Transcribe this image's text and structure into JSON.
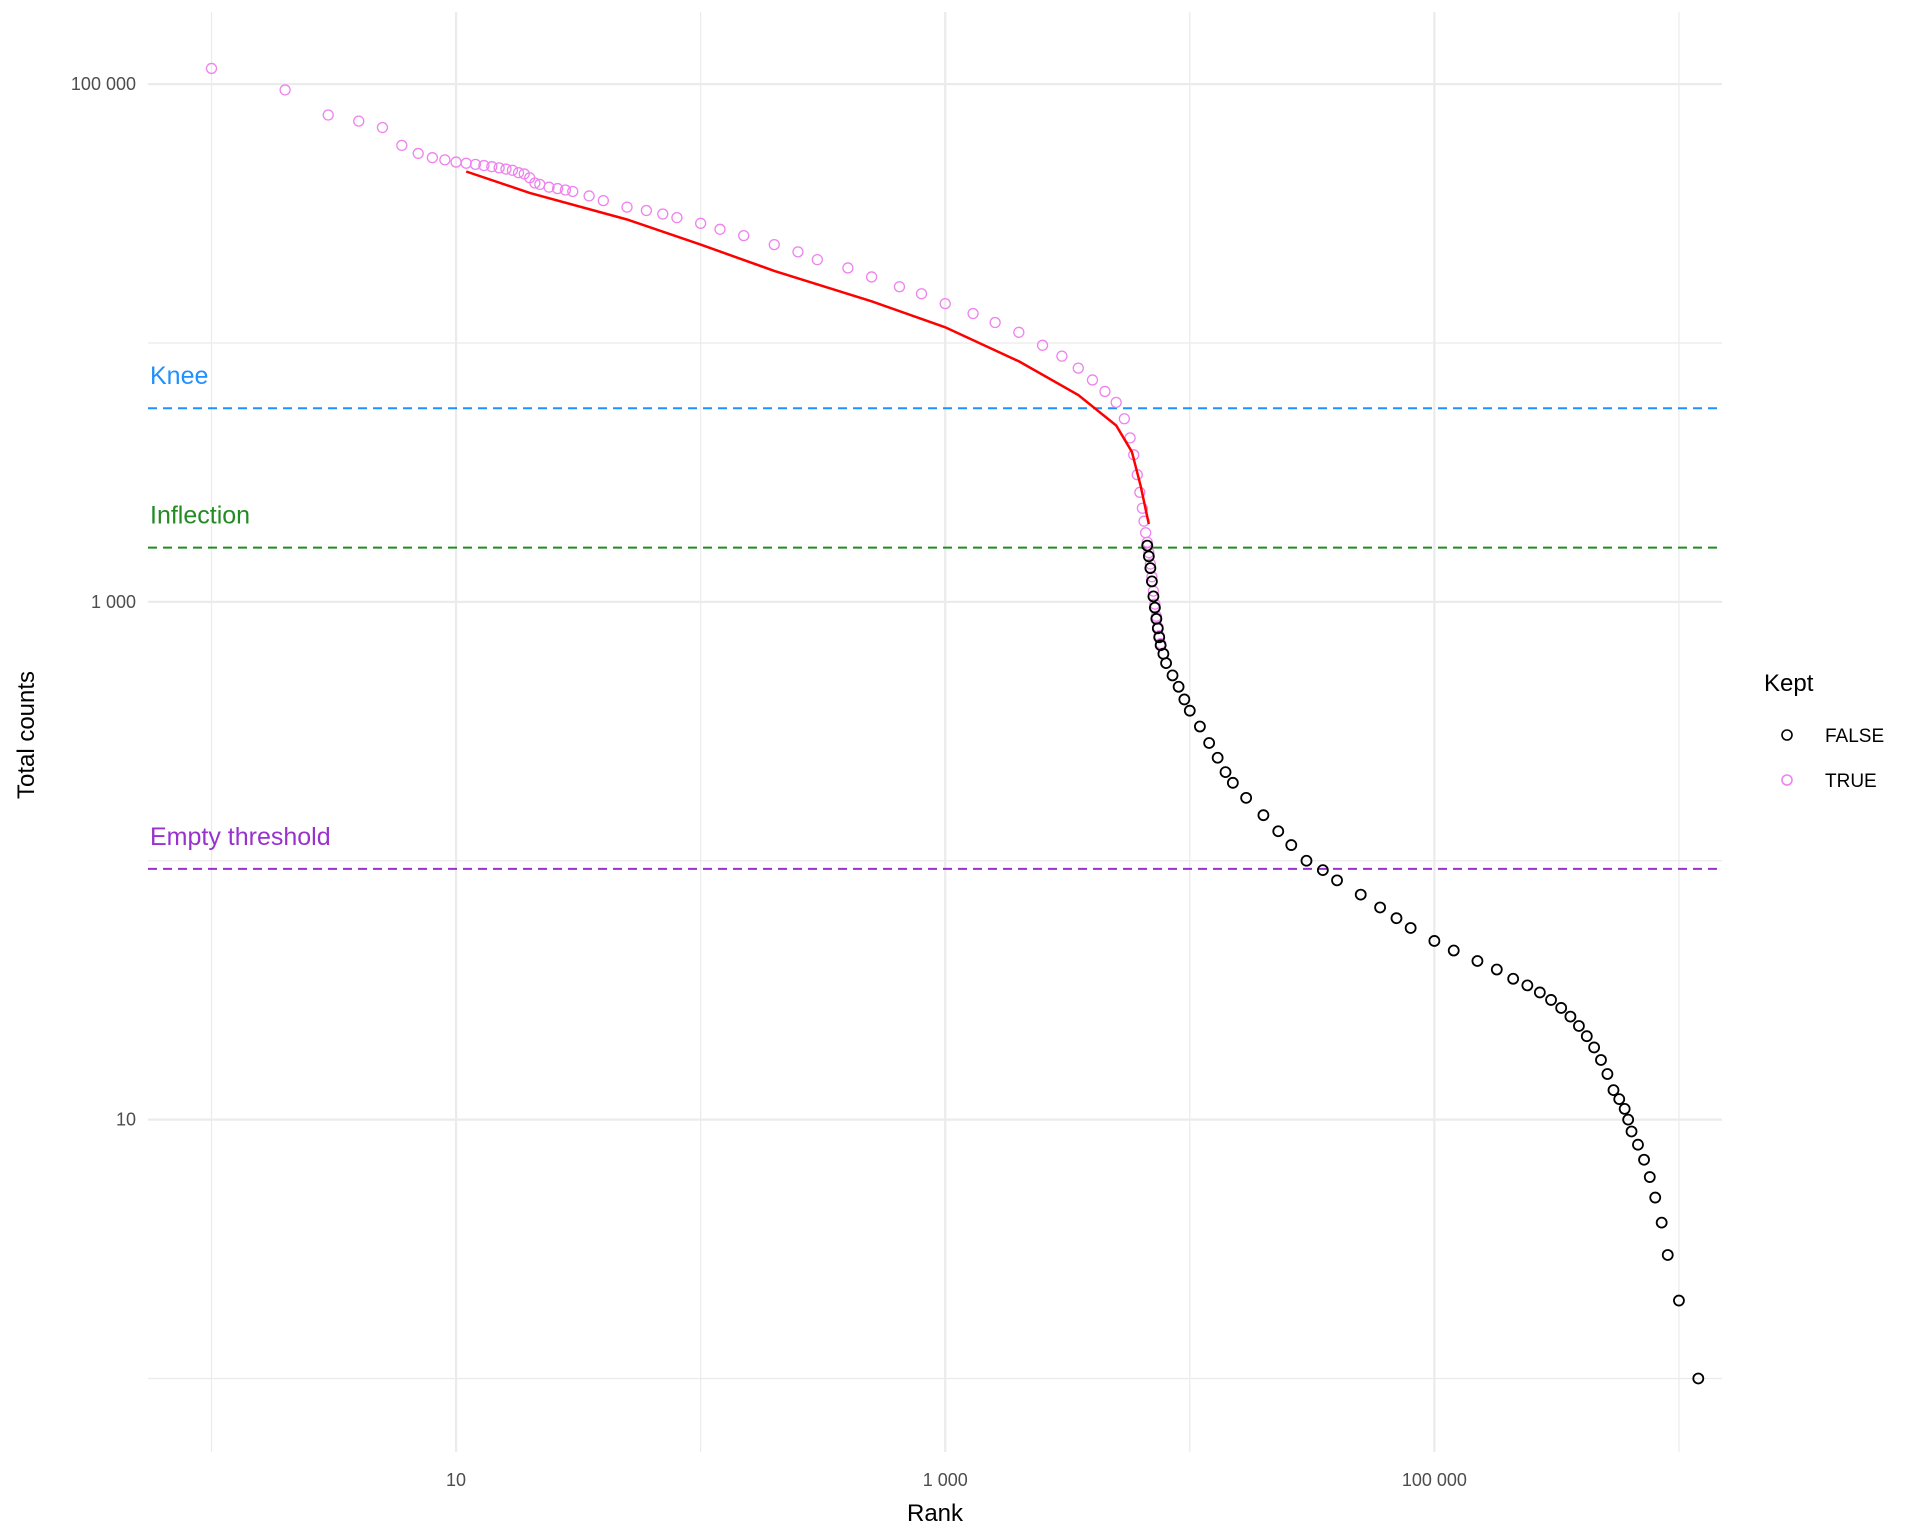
{
  "chart_data": {
    "type": "scatter",
    "title": "",
    "xlabel": "Rank",
    "ylabel": "Total counts",
    "x_scale": "log10",
    "y_scale": "log10",
    "xlim": [
      0.55,
      1500000
    ],
    "ylim": [
      0.52,
      190000
    ],
    "x_ticks": [
      {
        "value": 10,
        "label": "10"
      },
      {
        "value": 1000,
        "label": "1 000"
      },
      {
        "value": 100000,
        "label": "100 000"
      }
    ],
    "y_ticks": [
      {
        "value": 10,
        "label": "10"
      },
      {
        "value": 1000,
        "label": "1 000"
      },
      {
        "value": 100000,
        "label": "100 000"
      }
    ],
    "grid": true,
    "legend": {
      "title": "Kept",
      "placement": "right",
      "entries": [
        {
          "label": "FALSE",
          "color": "#000000"
        },
        {
          "label": "TRUE",
          "color": "#ee82ee"
        }
      ]
    },
    "reference_lines": [
      {
        "label": "Knee",
        "y": 5600,
        "color": "#1e90ff"
      },
      {
        "label": "Inflection",
        "y": 1620,
        "color": "#228b22"
      },
      {
        "label": "Empty threshold",
        "y": 93,
        "color": "#9932cc"
      }
    ],
    "fit_curve": {
      "color": "#ff0000",
      "points": [
        [
          11,
          46000
        ],
        [
          20,
          38000
        ],
        [
          50,
          30000
        ],
        [
          100,
          24000
        ],
        [
          200,
          19000
        ],
        [
          500,
          14500
        ],
        [
          1000,
          11500
        ],
        [
          2000,
          8500
        ],
        [
          3500,
          6300
        ],
        [
          5000,
          4800
        ],
        [
          5800,
          3800
        ],
        [
          6300,
          2800
        ],
        [
          6800,
          2000
        ]
      ]
    },
    "series": [
      {
        "name": "TRUE",
        "color": "#ee82ee",
        "points": [
          [
            1,
            115000
          ],
          [
            2,
            95000
          ],
          [
            3,
            76000
          ],
          [
            4,
            72000
          ],
          [
            5,
            68000
          ],
          [
            6,
            58000
          ],
          [
            7,
            54000
          ],
          [
            8,
            52000
          ],
          [
            9,
            51000
          ],
          [
            10,
            50000
          ],
          [
            11,
            49500
          ],
          [
            12,
            49000
          ],
          [
            13,
            48500
          ],
          [
            14,
            48000
          ],
          [
            15,
            47500
          ],
          [
            16,
            47000
          ],
          [
            17,
            46500
          ],
          [
            18,
            45500
          ],
          [
            19,
            45000
          ],
          [
            20,
            43500
          ],
          [
            21,
            41500
          ],
          [
            22,
            41000
          ],
          [
            24,
            40000
          ],
          [
            26,
            39500
          ],
          [
            28,
            39000
          ],
          [
            30,
            38500
          ],
          [
            35,
            37000
          ],
          [
            40,
            35500
          ],
          [
            50,
            33500
          ],
          [
            60,
            32500
          ],
          [
            70,
            31500
          ],
          [
            80,
            30500
          ],
          [
            100,
            29000
          ],
          [
            120,
            27500
          ],
          [
            150,
            26000
          ],
          [
            200,
            24000
          ],
          [
            250,
            22500
          ],
          [
            300,
            21000
          ],
          [
            400,
            19500
          ],
          [
            500,
            18000
          ],
          [
            650,
            16500
          ],
          [
            800,
            15500
          ],
          [
            1000,
            14200
          ],
          [
            1300,
            13000
          ],
          [
            1600,
            12000
          ],
          [
            2000,
            11000
          ],
          [
            2500,
            9800
          ],
          [
            3000,
            8900
          ],
          [
            3500,
            8000
          ],
          [
            4000,
            7200
          ],
          [
            4500,
            6500
          ],
          [
            5000,
            5900
          ],
          [
            5400,
            5100
          ],
          [
            5700,
            4300
          ],
          [
            5900,
            3700
          ],
          [
            6100,
            3100
          ],
          [
            6250,
            2650
          ],
          [
            6400,
            2300
          ],
          [
            6500,
            2050
          ],
          [
            6600,
            1850
          ],
          [
            6700,
            1700
          ],
          [
            6800,
            1550
          ],
          [
            6900,
            1400
          ],
          [
            7000,
            1250
          ],
          [
            7100,
            1100
          ],
          [
            7200,
            980
          ],
          [
            7300,
            880
          ],
          [
            7400,
            800
          ],
          [
            7500,
            740
          ],
          [
            7600,
            690
          ]
        ]
      },
      {
        "name": "FALSE",
        "color": "#000000",
        "points": [
          [
            6700,
            1650
          ],
          [
            6800,
            1500
          ],
          [
            6900,
            1350
          ],
          [
            7000,
            1200
          ],
          [
            7100,
            1050
          ],
          [
            7200,
            950
          ],
          [
            7300,
            860
          ],
          [
            7400,
            790
          ],
          [
            7500,
            730
          ],
          [
            7600,
            680
          ],
          [
            7800,
            630
          ],
          [
            8000,
            580
          ],
          [
            8500,
            520
          ],
          [
            9000,
            470
          ],
          [
            9500,
            420
          ],
          [
            10000,
            380
          ],
          [
            11000,
            330
          ],
          [
            12000,
            285
          ],
          [
            13000,
            250
          ],
          [
            14000,
            220
          ],
          [
            15000,
            200
          ],
          [
            17000,
            175
          ],
          [
            20000,
            150
          ],
          [
            23000,
            130
          ],
          [
            26000,
            115
          ],
          [
            30000,
            100
          ],
          [
            35000,
            92
          ],
          [
            40000,
            84
          ],
          [
            50000,
            74
          ],
          [
            60000,
            66
          ],
          [
            70000,
            60
          ],
          [
            80000,
            55
          ],
          [
            100000,
            49
          ],
          [
            120000,
            45
          ],
          [
            150000,
            41
          ],
          [
            180000,
            38
          ],
          [
            210000,
            35
          ],
          [
            240000,
            33
          ],
          [
            270000,
            31
          ],
          [
            300000,
            29
          ],
          [
            330000,
            27
          ],
          [
            360000,
            25
          ],
          [
            390000,
            23
          ],
          [
            420000,
            21
          ],
          [
            450000,
            19
          ],
          [
            480000,
            17
          ],
          [
            510000,
            15
          ],
          [
            540000,
            13
          ],
          [
            570000,
            12
          ],
          [
            600000,
            11
          ],
          [
            620000,
            10
          ],
          [
            640000,
            9
          ],
          [
            680000,
            8
          ],
          [
            720000,
            7
          ],
          [
            760000,
            6
          ],
          [
            800000,
            5
          ],
          [
            850000,
            4
          ],
          [
            900000,
            3
          ],
          [
            1000000,
            2
          ],
          [
            1200000,
            1
          ]
        ]
      }
    ]
  }
}
